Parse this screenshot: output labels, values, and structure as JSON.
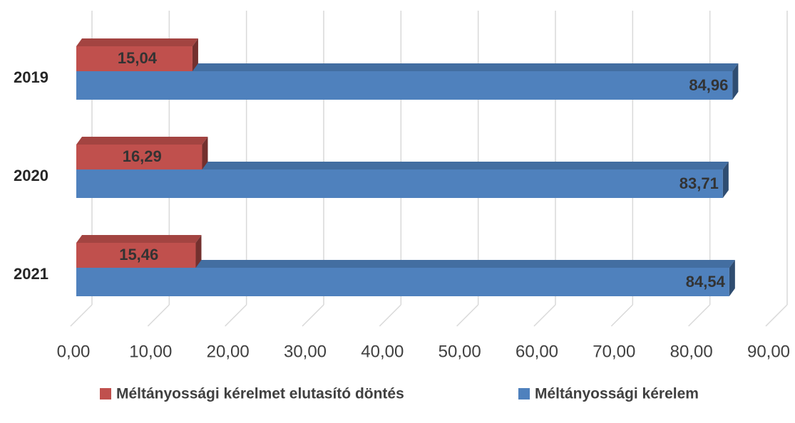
{
  "chart_data": {
    "type": "bar3d_horizontal",
    "categories": [
      "2019",
      "2020",
      "2021"
    ],
    "series": [
      {
        "name": "Méltányossági kérelmet elutasító döntés",
        "color": "#c0504d",
        "values": [
          15.04,
          16.29,
          15.46
        ],
        "value_labels": [
          "15,04",
          "16,29",
          "15,46"
        ]
      },
      {
        "name": "Méltányossági kérelem",
        "color": "#4f81bd",
        "values": [
          84.96,
          83.71,
          84.54
        ],
        "value_labels": [
          "84,96",
          "83,71",
          "84,54"
        ]
      }
    ],
    "xlim": [
      0,
      90
    ],
    "xticks": [
      {
        "value": 0,
        "label": "0,00"
      },
      {
        "value": 10,
        "label": "10,00"
      },
      {
        "value": 20,
        "label": "20,00"
      },
      {
        "value": 30,
        "label": "30,00"
      },
      {
        "value": 40,
        "label": "40,00"
      },
      {
        "value": 50,
        "label": "50,00"
      },
      {
        "value": 60,
        "label": "60,00"
      },
      {
        "value": 70,
        "label": "70,00"
      },
      {
        "value": 80,
        "label": "80,00"
      },
      {
        "value": 90,
        "label": "90,00"
      }
    ],
    "grid": true,
    "legend": "bottom"
  }
}
